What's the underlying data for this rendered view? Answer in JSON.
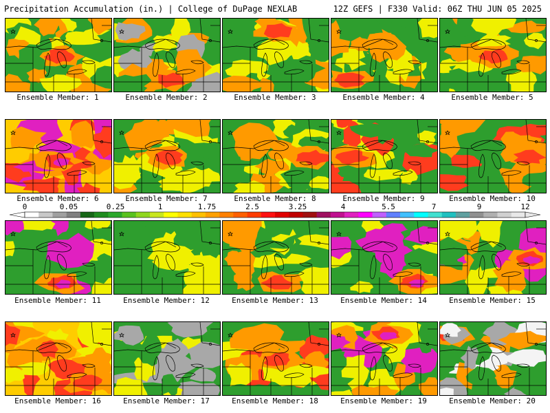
{
  "header": {
    "left": "Precipitation Accumulation (in.) | College of DuPage NEXLAB",
    "right": "12Z GEFS | F330 Valid: 06Z THU JUN 05 2025"
  },
  "member_label_prefix": "Ensemble Member:",
  "members": [
    {
      "number": "1",
      "dominant": [
        "yellow",
        "orange",
        "green"
      ],
      "heavy_region": "central"
    },
    {
      "number": "2",
      "dominant": [
        "green",
        "yellow",
        "orange",
        "gray"
      ],
      "heavy_region": "south"
    },
    {
      "number": "3",
      "dominant": [
        "yellow",
        "orange",
        "green"
      ],
      "heavy_region": "north"
    },
    {
      "number": "4",
      "dominant": [
        "green",
        "yellow",
        "orange"
      ],
      "heavy_region": "southwest"
    },
    {
      "number": "5",
      "dominant": [
        "yellow",
        "orange",
        "green"
      ],
      "heavy_region": "central"
    },
    {
      "number": "6",
      "dominant": [
        "red",
        "orange",
        "magenta"
      ],
      "heavy_region": "widespread"
    },
    {
      "number": "7",
      "dominant": [
        "yellow",
        "green",
        "orange"
      ],
      "heavy_region": "central"
    },
    {
      "number": "8",
      "dominant": [
        "yellow",
        "green",
        "orange"
      ],
      "heavy_region": "east"
    },
    {
      "number": "9",
      "dominant": [
        "green",
        "yellow",
        "red"
      ],
      "heavy_region": "west"
    },
    {
      "number": "10",
      "dominant": [
        "orange",
        "red",
        "green"
      ],
      "heavy_region": "east"
    },
    {
      "number": "11",
      "dominant": [
        "green",
        "yellow",
        "magenta"
      ],
      "heavy_region": "south"
    },
    {
      "number": "12",
      "dominant": [
        "green",
        "yellow"
      ],
      "heavy_region": "none"
    },
    {
      "number": "13",
      "dominant": [
        "green",
        "yellow",
        "orange"
      ],
      "heavy_region": "south"
    },
    {
      "number": "14",
      "dominant": [
        "green",
        "yellow",
        "magenta"
      ],
      "heavy_region": "southeast"
    },
    {
      "number": "15",
      "dominant": [
        "orange",
        "yellow",
        "green",
        "magenta"
      ],
      "heavy_region": "east"
    },
    {
      "number": "16",
      "dominant": [
        "yellow",
        "orange",
        "red"
      ],
      "heavy_region": "southeast"
    },
    {
      "number": "17",
      "dominant": [
        "green",
        "gray",
        "yellow"
      ],
      "heavy_region": "none"
    },
    {
      "number": "18",
      "dominant": [
        "orange",
        "yellow",
        "green",
        "red"
      ],
      "heavy_region": "central"
    },
    {
      "number": "19",
      "dominant": [
        "yellow",
        "orange",
        "magenta",
        "green"
      ],
      "heavy_region": "north"
    },
    {
      "number": "20",
      "dominant": [
        "green",
        "orange",
        "gray",
        "white"
      ],
      "heavy_region": "northwest"
    }
  ],
  "legend": {
    "tick_labels": [
      "0",
      "0.05",
      "0.25",
      "1",
      "1.75",
      "2.5",
      "3.25",
      "4",
      "5.5",
      "7",
      "9",
      "12"
    ],
    "colors": [
      "#ffffff",
      "#c8c8c8",
      "#a0a0a0",
      "#808080",
      "#166616",
      "#1e8c1e",
      "#2ba82b",
      "#59c21f",
      "#8fd61e",
      "#c8e61e",
      "#ffff00",
      "#ffe000",
      "#ffc000",
      "#ffa000",
      "#ff8000",
      "#ff6000",
      "#ff3c00",
      "#ff1010",
      "#e00000",
      "#c00000",
      "#a01010",
      "#a01060",
      "#c01090",
      "#e020c0",
      "#ff00ff",
      "#c060ff",
      "#6080ff",
      "#40c0ff",
      "#00ffff",
      "#40e0d0",
      "#20c0c0",
      "#60a0a0",
      "#909090",
      "#b0b0b0",
      "#d0d0d0",
      "#e8e8e8"
    ]
  },
  "palette": {
    "gray": "#a8a8a8",
    "white": "#f4f4f4",
    "dgreen": "#1a7a1a",
    "green": "#2e9e2e",
    "lgreen": "#6cc22a",
    "yellow": "#f0f000",
    "gold": "#ffcc00",
    "orange": "#ff9a00",
    "red": "#ff3c1e",
    "dred": "#d01010",
    "magenta": "#e020c0"
  }
}
